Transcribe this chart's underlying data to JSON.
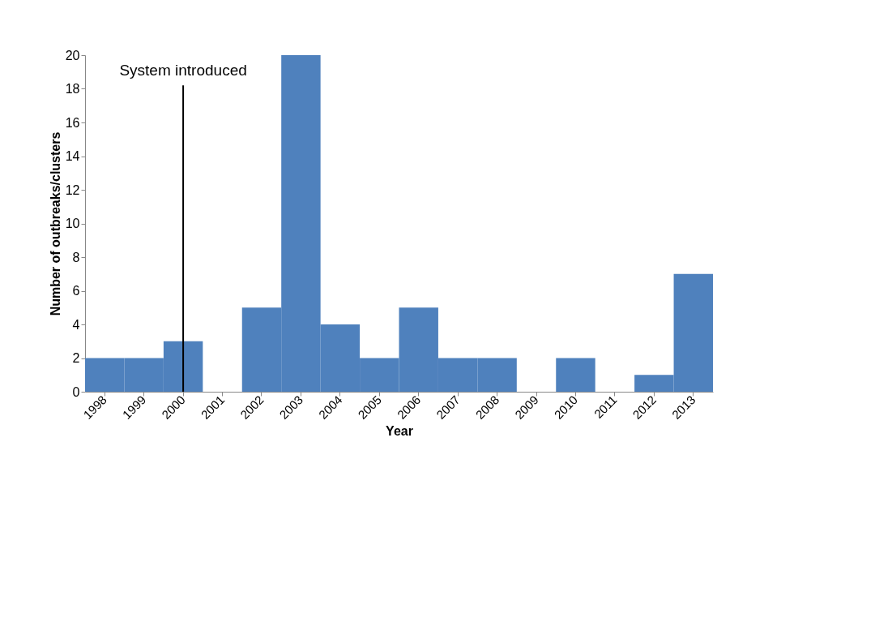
{
  "chart_data": {
    "type": "bar",
    "xlabel": "Year",
    "ylabel": "Number of outbreaks/clusters",
    "categories": [
      "1998",
      "1999",
      "2000",
      "2001",
      "2002",
      "2003",
      "2004",
      "2005",
      "2006",
      "2007",
      "2008",
      "2009",
      "2010",
      "2011",
      "2012",
      "2013"
    ],
    "values": [
      2,
      2,
      3,
      0,
      5,
      20,
      4,
      2,
      5,
      2,
      2,
      0,
      2,
      0,
      1,
      7
    ],
    "color": "#4f81bd",
    "ylim": [
      0,
      20
    ],
    "yticks": [
      0,
      2,
      4,
      6,
      8,
      10,
      12,
      14,
      16,
      18,
      20
    ],
    "grid": false,
    "ref_lines": [
      {
        "axis": "x",
        "value": "2000",
        "label": "System introduced",
        "color": "#000000"
      }
    ]
  }
}
